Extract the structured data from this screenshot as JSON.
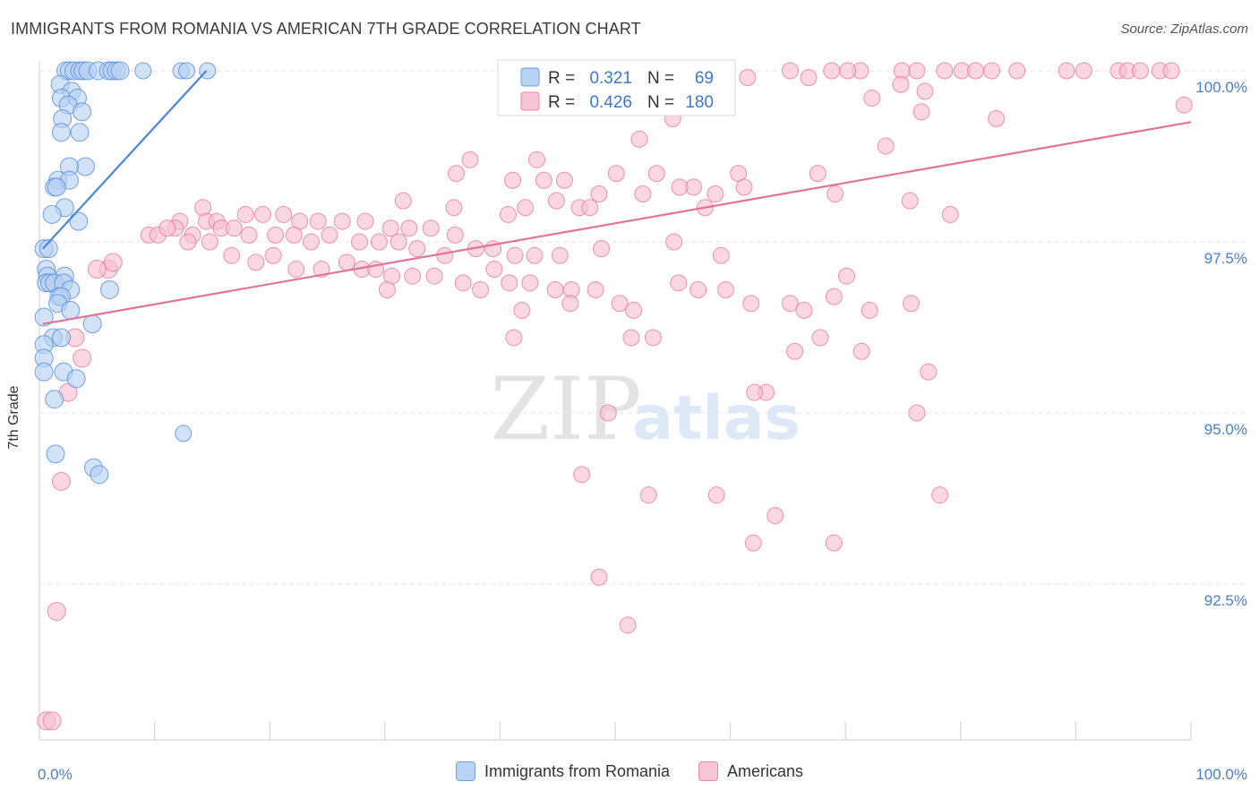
{
  "header": {
    "title": "IMMIGRANTS FROM ROMANIA VS AMERICAN 7TH GRADE CORRELATION CHART",
    "source": "Source: ZipAtlas.com"
  },
  "watermark": {
    "zip": "ZIP",
    "atlas": "atlas"
  },
  "legend_top": {
    "rows": [
      {
        "r_label": "R =",
        "r_value": "0.321",
        "n_label": "N =",
        "n_value": "69",
        "color": "#6a9fe0",
        "fill": "#b9d3f5"
      },
      {
        "r_label": "R =",
        "r_value": "0.426",
        "n_label": "N =",
        "n_value": "180",
        "color": "#e987a8",
        "fill": "#f8c5d6"
      }
    ]
  },
  "chart_data": {
    "type": "scatter",
    "title": "IMMIGRANTS FROM ROMANIA VS AMERICAN 7TH GRADE CORRELATION CHART",
    "xlabel": "",
    "ylabel": "7th Grade",
    "xlim": [
      0,
      100
    ],
    "ylim": [
      90.0,
      100.2
    ],
    "x_ticks": [
      "0.0%",
      "100.0%"
    ],
    "y_ticks": [
      {
        "value": 100.0,
        "label": "100.0%"
      },
      {
        "value": 97.5,
        "label": "97.5%"
      },
      {
        "value": 95.0,
        "label": "95.0%"
      },
      {
        "value": 92.5,
        "label": "92.5%"
      }
    ],
    "grid": true,
    "series": [
      {
        "name": "Immigrants from Romania",
        "color": "#4a86d8",
        "fill": "#b7d0f2",
        "trend": {
          "x1": 0.3,
          "y1": 97.4,
          "x2": 14.5,
          "y2": 100.0
        },
        "points": [
          [
            2.3,
            100
          ],
          [
            2.6,
            100
          ],
          [
            3.0,
            100
          ],
          [
            3.5,
            100
          ],
          [
            3.8,
            100
          ],
          [
            4.2,
            100
          ],
          [
            5.1,
            100
          ],
          [
            6.0,
            100
          ],
          [
            6.3,
            100
          ],
          [
            6.7,
            100
          ],
          [
            7.0,
            100
          ],
          [
            9.0,
            100
          ],
          [
            12.3,
            100
          ],
          [
            12.8,
            100
          ],
          [
            14.6,
            100
          ],
          [
            1.8,
            99.8
          ],
          [
            2.8,
            99.7
          ],
          [
            1.9,
            99.6
          ],
          [
            3.3,
            99.6
          ],
          [
            2.5,
            99.5
          ],
          [
            3.7,
            99.4
          ],
          [
            2.0,
            99.3
          ],
          [
            3.5,
            99.1
          ],
          [
            1.9,
            99.1
          ],
          [
            4.0,
            98.6
          ],
          [
            2.6,
            98.6
          ],
          [
            1.6,
            98.4
          ],
          [
            2.6,
            98.4
          ],
          [
            1.3,
            98.3
          ],
          [
            1.5,
            98.3
          ],
          [
            2.2,
            98.0
          ],
          [
            1.1,
            97.9
          ],
          [
            3.4,
            97.8
          ],
          [
            0.4,
            97.4
          ],
          [
            0.8,
            97.4
          ],
          [
            0.6,
            97.1
          ],
          [
            0.7,
            97.0
          ],
          [
            2.2,
            97.0
          ],
          [
            0.6,
            96.9
          ],
          [
            0.9,
            96.9
          ],
          [
            1.3,
            96.9
          ],
          [
            2.1,
            96.9
          ],
          [
            2.7,
            96.8
          ],
          [
            6.1,
            96.8
          ],
          [
            1.7,
            96.7
          ],
          [
            1.9,
            96.7
          ],
          [
            1.6,
            96.6
          ],
          [
            2.7,
            96.5
          ],
          [
            0.4,
            96.4
          ],
          [
            4.6,
            96.3
          ],
          [
            1.2,
            96.1
          ],
          [
            1.9,
            96.1
          ],
          [
            0.4,
            96.0
          ],
          [
            0.4,
            95.8
          ],
          [
            0.4,
            95.6
          ],
          [
            2.1,
            95.6
          ],
          [
            3.2,
            95.5
          ],
          [
            1.3,
            95.2
          ],
          [
            12.5,
            94.7
          ],
          [
            1.4,
            94.4
          ],
          [
            4.7,
            94.2
          ],
          [
            5.2,
            94.1
          ]
        ]
      },
      {
        "name": "Americans",
        "color": "#e2739a",
        "fill": "#f7bfd2",
        "trend": {
          "x1": 0.3,
          "y1": 96.3,
          "x2": 100.0,
          "y2": 99.25
        },
        "points": [
          [
            59.5,
            100
          ],
          [
            65.2,
            100
          ],
          [
            68.8,
            100
          ],
          [
            71.3,
            100
          ],
          [
            74.9,
            100
          ],
          [
            76.2,
            100
          ],
          [
            78.6,
            100
          ],
          [
            80.1,
            100
          ],
          [
            82.7,
            100
          ],
          [
            84.9,
            100
          ],
          [
            89.2,
            100
          ],
          [
            90.7,
            100
          ],
          [
            93.7,
            100
          ],
          [
            94.5,
            100
          ],
          [
            95.6,
            100
          ],
          [
            97.3,
            100
          ],
          [
            98.3,
            100
          ],
          [
            81.3,
            100
          ],
          [
            70.2,
            100
          ],
          [
            66.8,
            99.9
          ],
          [
            61.5,
            99.9
          ],
          [
            74.8,
            99.8
          ],
          [
            76.9,
            99.7
          ],
          [
            72.3,
            99.6
          ],
          [
            76.6,
            99.4
          ],
          [
            99.4,
            99.5
          ],
          [
            55.0,
            99.3
          ],
          [
            83.1,
            99.3
          ],
          [
            52.1,
            99.0
          ],
          [
            73.5,
            98.9
          ],
          [
            37.4,
            98.7
          ],
          [
            43.2,
            98.7
          ],
          [
            50.1,
            98.5
          ],
          [
            36.2,
            98.5
          ],
          [
            41.1,
            98.4
          ],
          [
            45.6,
            98.4
          ],
          [
            53.6,
            98.5
          ],
          [
            60.7,
            98.5
          ],
          [
            67.6,
            98.5
          ],
          [
            43.8,
            98.4
          ],
          [
            56.8,
            98.3
          ],
          [
            61.2,
            98.3
          ],
          [
            55.6,
            98.3
          ],
          [
            48.6,
            98.2
          ],
          [
            52.4,
            98.2
          ],
          [
            58.7,
            98.2
          ],
          [
            69.1,
            98.2
          ],
          [
            75.6,
            98.1
          ],
          [
            44.9,
            98.1
          ],
          [
            31.6,
            98.1
          ],
          [
            36.0,
            98.0
          ],
          [
            57.8,
            98.0
          ],
          [
            42.2,
            98.0
          ],
          [
            46.9,
            98.0
          ],
          [
            47.8,
            98.0
          ],
          [
            79.1,
            97.9
          ],
          [
            40.7,
            97.9
          ],
          [
            14.2,
            98.0
          ],
          [
            12.2,
            97.8
          ],
          [
            14.5,
            97.8
          ],
          [
            15.4,
            97.8
          ],
          [
            17.9,
            97.9
          ],
          [
            19.4,
            97.9
          ],
          [
            21.2,
            97.9
          ],
          [
            22.6,
            97.8
          ],
          [
            24.2,
            97.8
          ],
          [
            26.3,
            97.8
          ],
          [
            28.3,
            97.8
          ],
          [
            30.5,
            97.7
          ],
          [
            32.1,
            97.7
          ],
          [
            34.0,
            97.7
          ],
          [
            36.1,
            97.6
          ],
          [
            11.8,
            97.7
          ],
          [
            13.3,
            97.6
          ],
          [
            15.8,
            97.7
          ],
          [
            16.9,
            97.7
          ],
          [
            18.2,
            97.6
          ],
          [
            20.5,
            97.6
          ],
          [
            22.1,
            97.6
          ],
          [
            23.6,
            97.5
          ],
          [
            25.2,
            97.6
          ],
          [
            27.8,
            97.5
          ],
          [
            29.5,
            97.5
          ],
          [
            31.2,
            97.5
          ],
          [
            32.8,
            97.4
          ],
          [
            35.2,
            97.3
          ],
          [
            37.9,
            97.4
          ],
          [
            39.4,
            97.4
          ],
          [
            41.3,
            97.3
          ],
          [
            43.0,
            97.3
          ],
          [
            45.2,
            97.3
          ],
          [
            9.5,
            97.6
          ],
          [
            10.3,
            97.6
          ],
          [
            11.1,
            97.7
          ],
          [
            12.9,
            97.5
          ],
          [
            14.8,
            97.5
          ],
          [
            16.7,
            97.3
          ],
          [
            18.8,
            97.2
          ],
          [
            20.3,
            97.3
          ],
          [
            22.3,
            97.1
          ],
          [
            24.5,
            97.1
          ],
          [
            26.7,
            97.2
          ],
          [
            28.0,
            97.1
          ],
          [
            29.2,
            97.1
          ],
          [
            30.6,
            97.0
          ],
          [
            32.4,
            97.0
          ],
          [
            34.3,
            97.0
          ],
          [
            36.8,
            96.9
          ],
          [
            38.3,
            96.8
          ],
          [
            40.8,
            96.9
          ],
          [
            42.6,
            96.9
          ],
          [
            44.8,
            96.8
          ],
          [
            46.2,
            96.8
          ],
          [
            48.3,
            96.8
          ],
          [
            50.4,
            96.6
          ],
          [
            51.6,
            96.5
          ],
          [
            55.5,
            96.9
          ],
          [
            57.2,
            96.8
          ],
          [
            59.6,
            96.8
          ],
          [
            61.8,
            96.6
          ],
          [
            65.2,
            96.6
          ],
          [
            66.4,
            96.5
          ],
          [
            69.0,
            96.7
          ],
          [
            72.1,
            96.5
          ],
          [
            75.7,
            96.6
          ],
          [
            55.1,
            97.5
          ],
          [
            59.2,
            97.3
          ],
          [
            48.8,
            97.4
          ],
          [
            39.5,
            97.1
          ],
          [
            30.2,
            96.8
          ],
          [
            41.9,
            96.5
          ],
          [
            46.1,
            96.6
          ],
          [
            51.4,
            96.1
          ],
          [
            53.3,
            96.1
          ],
          [
            41.2,
            96.1
          ],
          [
            70.1,
            97.0
          ],
          [
            67.8,
            96.1
          ],
          [
            65.6,
            95.9
          ],
          [
            71.4,
            95.9
          ],
          [
            63.1,
            95.3
          ],
          [
            62.1,
            95.3
          ],
          [
            49.4,
            95.0
          ],
          [
            76.2,
            95.0
          ],
          [
            77.2,
            95.6
          ],
          [
            6.0,
            97.1
          ],
          [
            6.4,
            97.2
          ],
          [
            5.0,
            97.1
          ],
          [
            3.1,
            96.1
          ],
          [
            3.7,
            95.8
          ],
          [
            2.5,
            95.3
          ],
          [
            1.9,
            94.0
          ],
          [
            1.5,
            92.1
          ],
          [
            0.6,
            90.5
          ],
          [
            1.1,
            90.5
          ],
          [
            47.1,
            94.1
          ],
          [
            52.9,
            93.8
          ],
          [
            58.8,
            93.8
          ],
          [
            63.9,
            93.5
          ],
          [
            62.0,
            93.1
          ],
          [
            69.0,
            93.1
          ],
          [
            48.6,
            92.6
          ],
          [
            51.1,
            91.9
          ],
          [
            78.2,
            93.8
          ]
        ]
      }
    ],
    "legend": {
      "position": "top-center",
      "entries": [
        "Immigrants from Romania",
        "Americans"
      ]
    }
  }
}
